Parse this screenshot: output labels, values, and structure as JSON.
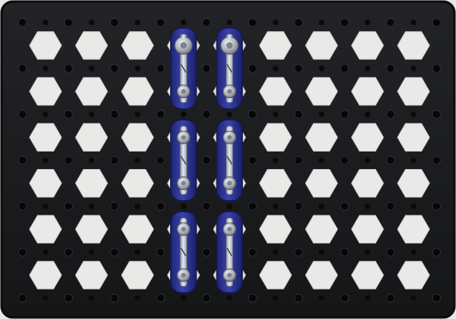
{
  "scene": {
    "subject": "snap-circuit-base-grid",
    "colors": {
      "board": "#1b1c1e",
      "board_edge": "#0c0c0d",
      "hex_hole": "#e9e9e7",
      "peg": "#070708",
      "connector_body": "#2a2f8c",
      "connector_highlight": "#4a52c4",
      "metal_strip": "#c9cdd6",
      "snap_metal": "#b8bcc4",
      "background": "#e8e8e6"
    },
    "grid": {
      "columns": 9,
      "rows": 6
    },
    "connectors": [
      {
        "id": "top-left",
        "type": "2-snap-wire",
        "column": 4,
        "rows": [
          1,
          2
        ],
        "top_cap": "silver"
      },
      {
        "id": "top-right",
        "type": "2-snap-wire",
        "column": 5,
        "rows": [
          1,
          2
        ],
        "top_cap": "silver"
      },
      {
        "id": "middle-left",
        "type": "2-snap-wire",
        "column": 4,
        "rows": [
          3,
          4
        ]
      },
      {
        "id": "middle-right",
        "type": "2-snap-wire",
        "column": 5,
        "rows": [
          3,
          4
        ]
      },
      {
        "id": "bottom-left",
        "type": "2-snap-wire",
        "column": 4,
        "rows": [
          5,
          6
        ]
      },
      {
        "id": "bottom-right",
        "type": "2-snap-wire",
        "column": 5,
        "rows": [
          5,
          6
        ]
      }
    ]
  }
}
